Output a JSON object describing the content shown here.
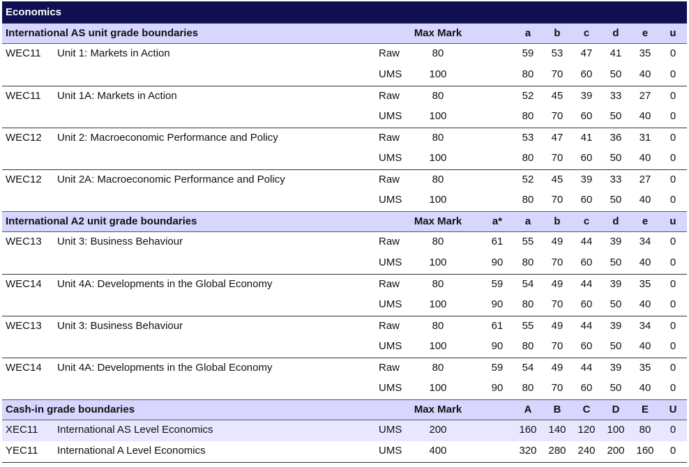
{
  "title": "Economics",
  "as_section": {
    "heading": "International AS unit grade boundaries",
    "max_label": "Max Mark",
    "grades": [
      "a",
      "b",
      "c",
      "d",
      "e",
      "u"
    ],
    "rows": [
      {
        "code": "WEC11",
        "title": "Unit 1: Markets in Action",
        "type": "Raw",
        "max": "80",
        "g": [
          "59",
          "53",
          "47",
          "41",
          "35",
          "0"
        ]
      },
      {
        "code": "",
        "title": "",
        "type": "UMS",
        "max": "100",
        "g": [
          "80",
          "70",
          "60",
          "50",
          "40",
          "0"
        ]
      },
      {
        "code": "WEC11",
        "title": "Unit 1A: Markets in Action",
        "type": "Raw",
        "max": "80",
        "g": [
          "52",
          "45",
          "39",
          "33",
          "27",
          "0"
        ]
      },
      {
        "code": "",
        "title": "",
        "type": "UMS",
        "max": "100",
        "g": [
          "80",
          "70",
          "60",
          "50",
          "40",
          "0"
        ]
      },
      {
        "code": "WEC12",
        "title": "Unit 2: Macroeconomic Performance and Policy",
        "type": "Raw",
        "max": "80",
        "g": [
          "53",
          "47",
          "41",
          "36",
          "31",
          "0"
        ]
      },
      {
        "code": "",
        "title": "",
        "type": "UMS",
        "max": "100",
        "g": [
          "80",
          "70",
          "60",
          "50",
          "40",
          "0"
        ]
      },
      {
        "code": "WEC12",
        "title": "Unit 2A: Macroeconomic Performance and Policy",
        "type": "Raw",
        "max": "80",
        "g": [
          "52",
          "45",
          "39",
          "33",
          "27",
          "0"
        ]
      },
      {
        "code": "",
        "title": "",
        "type": "UMS",
        "max": "100",
        "g": [
          "80",
          "70",
          "60",
          "50",
          "40",
          "0"
        ]
      }
    ]
  },
  "a2_section": {
    "heading": "International A2 unit grade boundaries",
    "max_label": "Max Mark",
    "grades": [
      "a*",
      "a",
      "b",
      "c",
      "d",
      "e",
      "u"
    ],
    "rows": [
      {
        "code": "WEC13",
        "title": "Unit 3: Business Behaviour",
        "type": "Raw",
        "max": "80",
        "g": [
          "61",
          "55",
          "49",
          "44",
          "39",
          "34",
          "0"
        ]
      },
      {
        "code": "",
        "title": "",
        "type": "UMS",
        "max": "100",
        "g": [
          "90",
          "80",
          "70",
          "60",
          "50",
          "40",
          "0"
        ]
      },
      {
        "code": "WEC14",
        "title": "Unit 4A: Developments in the Global Economy",
        "type": "Raw",
        "max": "80",
        "g": [
          "59",
          "54",
          "49",
          "44",
          "39",
          "35",
          "0"
        ]
      },
      {
        "code": "",
        "title": "",
        "type": "UMS",
        "max": "100",
        "g": [
          "90",
          "80",
          "70",
          "60",
          "50",
          "40",
          "0"
        ]
      },
      {
        "code": "WEC13",
        "title": "Unit 3: Business Behaviour",
        "type": "Raw",
        "max": "80",
        "g": [
          "61",
          "55",
          "49",
          "44",
          "39",
          "34",
          "0"
        ]
      },
      {
        "code": "",
        "title": "",
        "type": "UMS",
        "max": "100",
        "g": [
          "90",
          "80",
          "70",
          "60",
          "50",
          "40",
          "0"
        ]
      },
      {
        "code": "WEC14",
        "title": "Unit 4A: Developments in the Global Economy",
        "type": "Raw",
        "max": "80",
        "g": [
          "59",
          "54",
          "49",
          "44",
          "39",
          "35",
          "0"
        ]
      },
      {
        "code": "",
        "title": "",
        "type": "UMS",
        "max": "100",
        "g": [
          "90",
          "80",
          "70",
          "60",
          "50",
          "40",
          "0"
        ]
      }
    ]
  },
  "cash_section": {
    "heading": "Cash-in grade boundaries",
    "max_label": "Max Mark",
    "grades": [
      "A",
      "B",
      "C",
      "D",
      "E",
      "U"
    ],
    "rows": [
      {
        "code": "XEC11",
        "title": "International AS Level Economics",
        "type": "UMS",
        "max": "200",
        "g": [
          "160",
          "140",
          "120",
          "100",
          "80",
          "0"
        ]
      },
      {
        "code": "YEC11",
        "title": "International A Level Economics",
        "type": "UMS",
        "max": "400",
        "g": [
          "320",
          "280",
          "240",
          "200",
          "160",
          "0"
        ]
      }
    ]
  },
  "colors": {
    "title_bg": "#0f0f52",
    "header_bg": "#d7d6ff",
    "cash_row_bg": "#e8e7ff"
  }
}
